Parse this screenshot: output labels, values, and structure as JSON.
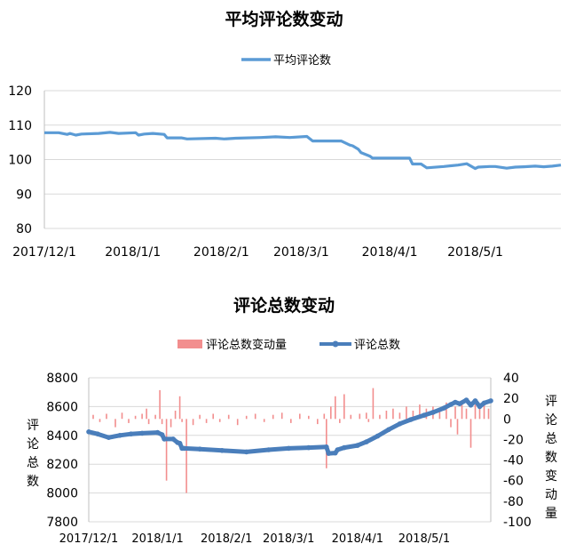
{
  "chart_data": [
    {
      "type": "line",
      "title": "平均评论数变动",
      "legend": "top",
      "ylim": [
        80,
        120
      ],
      "yticks": [
        80,
        90,
        100,
        110,
        120
      ],
      "xticks": [
        "2017/12/1",
        "2018/1/1",
        "2018/2/1",
        "2018/3/1",
        "2018/4/1",
        "2018/5/1"
      ],
      "xlim": [
        "2017/12/1",
        "2018/5/31"
      ],
      "grid": "horizontal",
      "color": "#5b9bd5",
      "series": [
        {
          "name": "平均评论数",
          "x": [
            "2017/12/1",
            "2017/12/6",
            "2017/12/9",
            "2017/12/10",
            "2017/12/12",
            "2017/12/14",
            "2017/12/20",
            "2017/12/24",
            "2017/12/27",
            "2018/1/2",
            "2018/1/3",
            "2018/1/5",
            "2018/1/8",
            "2018/1/12",
            "2018/1/13",
            "2018/1/18",
            "2018/1/20",
            "2018/1/30",
            "2018/2/2",
            "2018/2/6",
            "2018/2/15",
            "2018/2/20",
            "2018/2/25",
            "2018/3/3",
            "2018/3/5",
            "2018/3/15",
            "2018/3/18",
            "2018/3/19",
            "2018/3/21",
            "2018/3/22",
            "2018/3/25",
            "2018/3/26",
            "2018/3/31",
            "2018/4/8",
            "2018/4/9",
            "2018/4/12",
            "2018/4/14",
            "2018/4/20",
            "2018/4/25",
            "2018/4/28",
            "2018/5/1",
            "2018/5/2",
            "2018/5/6",
            "2018/5/8",
            "2018/5/12",
            "2018/5/15",
            "2018/5/18",
            "2018/5/22",
            "2018/5/25",
            "2018/5/28",
            "2018/5/31"
          ],
          "y": [
            107.8,
            107.8,
            107.3,
            107.6,
            107.1,
            107.4,
            107.6,
            107.9,
            107.6,
            107.8,
            107.1,
            107.4,
            107.6,
            107.3,
            106.3,
            106.3,
            106.0,
            106.2,
            106.0,
            106.2,
            106.4,
            106.6,
            106.4,
            106.7,
            105.4,
            105.4,
            104.2,
            104.0,
            103.0,
            102.0,
            101.0,
            100.4,
            100.4,
            100.4,
            98.7,
            98.7,
            97.6,
            98.0,
            98.4,
            98.8,
            97.4,
            97.8,
            98.0,
            98.0,
            97.5,
            97.8,
            97.9,
            98.1,
            97.9,
            98.1,
            98.4
          ]
        }
      ]
    },
    {
      "type": "bar+line",
      "title": "评论总数变动",
      "legend": "top",
      "xticks": [
        "2017/12/1",
        "2018/1/1",
        "2018/2/1",
        "2018/3/1",
        "2018/4/1",
        "2018/5/1"
      ],
      "xlim": [
        "2017/12/1",
        "2018/5/31"
      ],
      "ylabel_left": "评论总数",
      "ylabel_right": "评论总数变动量",
      "ylim_left": [
        7800,
        8800
      ],
      "yticks_left": [
        7800,
        8000,
        8200,
        8400,
        8600,
        8800
      ],
      "ylim_right": [
        -100,
        40
      ],
      "yticks_right": [
        -100,
        -80,
        -60,
        -40,
        -20,
        0,
        20,
        40
      ],
      "grid": "horizontal",
      "series": [
        {
          "name": "评论总数变动量",
          "type": "bar",
          "axis": "right",
          "color": "#f28e8e",
          "x": [
            "2017/12/3",
            "2017/12/6",
            "2017/12/9",
            "2017/12/13",
            "2017/12/16",
            "2017/12/19",
            "2017/12/22",
            "2017/12/25",
            "2017/12/27",
            "2017/12/28",
            "2017/12/31",
            "2018/1/2",
            "2018/1/3",
            "2018/1/5",
            "2018/1/7",
            "2018/1/9",
            "2018/1/11",
            "2018/1/12",
            "2018/1/14",
            "2018/1/17",
            "2018/1/20",
            "2018/1/23",
            "2018/1/26",
            "2018/1/29",
            "2018/2/2",
            "2018/2/6",
            "2018/2/10",
            "2018/2/14",
            "2018/2/18",
            "2018/2/22",
            "2018/2/26",
            "2018/3/2",
            "2018/3/6",
            "2018/3/10",
            "2018/3/14",
            "2018/3/17",
            "2018/3/18",
            "2018/3/20",
            "2018/3/22",
            "2018/3/24",
            "2018/3/26",
            "2018/3/29",
            "2018/4/2",
            "2018/4/5",
            "2018/4/6",
            "2018/4/8",
            "2018/4/11",
            "2018/4/14",
            "2018/4/17",
            "2018/4/20",
            "2018/4/23",
            "2018/4/26",
            "2018/4/29",
            "2018/5/2",
            "2018/5/5",
            "2018/5/8",
            "2018/5/11",
            "2018/5/13",
            "2018/5/15",
            "2018/5/16",
            "2018/5/18",
            "2018/5/20",
            "2018/5/22",
            "2018/5/24",
            "2018/5/26",
            "2018/5/28",
            "2018/5/30"
          ],
          "y": [
            4,
            -3,
            5,
            -8,
            6,
            -4,
            3,
            5,
            10,
            -5,
            4,
            28,
            -5,
            -60,
            -8,
            8,
            22,
            -3,
            -72,
            -6,
            4,
            -4,
            5,
            -3,
            4,
            -6,
            3,
            5,
            -3,
            4,
            6,
            -4,
            5,
            3,
            -5,
            5,
            -48,
            12,
            22,
            -4,
            24,
            4,
            5,
            6,
            -3,
            30,
            4,
            8,
            10,
            6,
            12,
            8,
            14,
            10,
            12,
            8,
            16,
            -8,
            12,
            -15,
            18,
            10,
            -28,
            14,
            12,
            16,
            10
          ]
        },
        {
          "name": "评论总数",
          "type": "line",
          "axis": "left",
          "color": "#4a7ebb",
          "x": [
            "2017/12/1",
            "2017/12/5",
            "2017/12/10",
            "2017/12/15",
            "2017/12/20",
            "2017/12/25",
            "2018/1/1",
            "2018/1/3",
            "2018/1/4",
            "2018/1/8",
            "2018/1/10",
            "2018/1/11",
            "2018/1/12",
            "2018/1/13",
            "2018/1/20",
            "2018/1/30",
            "2018/2/10",
            "2018/2/20",
            "2018/3/1",
            "2018/3/10",
            "2018/3/18",
            "2018/3/19",
            "2018/3/22",
            "2018/3/23",
            "2018/3/26",
            "2018/4/1",
            "2018/4/5",
            "2018/4/10",
            "2018/4/15",
            "2018/4/20",
            "2018/4/25",
            "2018/5/1",
            "2018/5/5",
            "2018/5/10",
            "2018/5/13",
            "2018/5/15",
            "2018/5/17",
            "2018/5/20",
            "2018/5/22",
            "2018/5/24",
            "2018/5/26",
            "2018/5/28",
            "2018/5/31"
          ],
          "y": [
            8425,
            8410,
            8385,
            8400,
            8410,
            8415,
            8420,
            8405,
            8375,
            8375,
            8350,
            8345,
            8310,
            8310,
            8305,
            8295,
            8285,
            8300,
            8310,
            8315,
            8320,
            8275,
            8278,
            8300,
            8315,
            8330,
            8355,
            8395,
            8440,
            8480,
            8510,
            8540,
            8560,
            8590,
            8615,
            8630,
            8620,
            8645,
            8610,
            8640,
            8600,
            8625,
            8640
          ]
        }
      ]
    }
  ]
}
